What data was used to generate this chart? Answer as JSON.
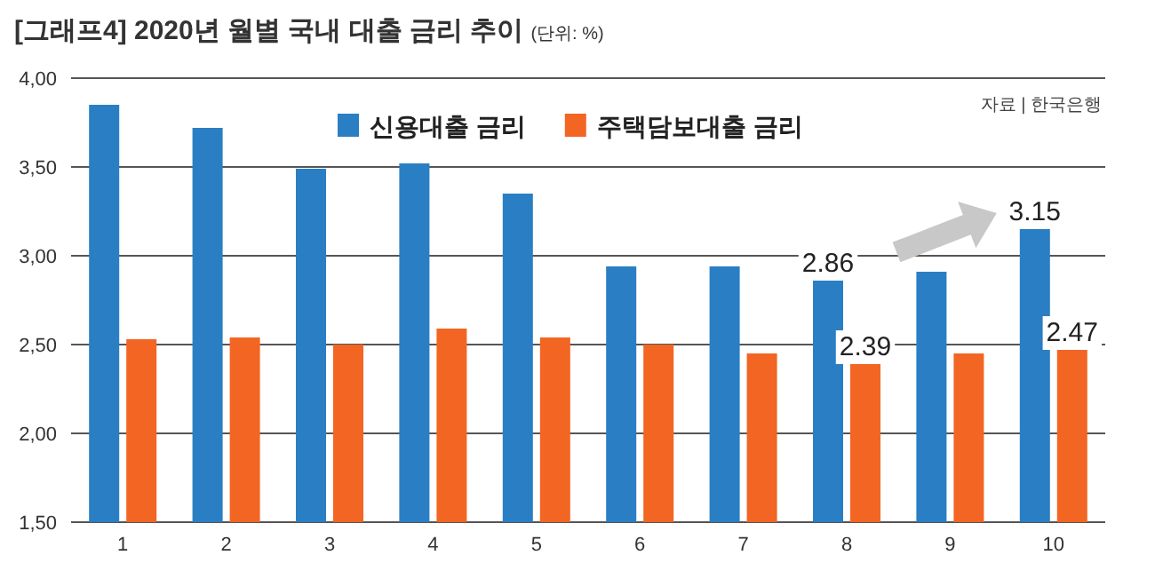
{
  "chart_data": {
    "type": "bar",
    "title": "[그래프4] 2020년 월별 국내 대출 금리 추이",
    "subtitle": "(단위: %)",
    "annotations": [
      "자료 | 한국은행"
    ],
    "categories": [
      "1",
      "2",
      "3",
      "4",
      "5",
      "6",
      "7",
      "8",
      "9",
      "10"
    ],
    "series": [
      {
        "name": "신용대출 금리",
        "color": "#2a7fc4",
        "values": [
          3.85,
          3.72,
          3.49,
          3.52,
          3.35,
          2.94,
          2.94,
          2.86,
          2.91,
          3.15
        ],
        "value_labels": [
          null,
          null,
          null,
          null,
          null,
          null,
          null,
          "2.86",
          null,
          "3.15"
        ]
      },
      {
        "name": "주택담보대출 금리",
        "color": "#f26522",
        "values": [
          2.53,
          2.54,
          2.5,
          2.59,
          2.54,
          2.5,
          2.45,
          2.39,
          2.45,
          2.47
        ],
        "value_labels": [
          null,
          null,
          null,
          null,
          null,
          null,
          null,
          "2.39",
          null,
          "2.47"
        ]
      }
    ],
    "ylim": [
      1.5,
      4.0
    ],
    "yticks": [
      {
        "value": 1.5,
        "label": "1,50"
      },
      {
        "value": 2.0,
        "label": "2,00"
      },
      {
        "value": 2.5,
        "label": "2,50"
      },
      {
        "value": 3.0,
        "label": "3,00"
      },
      {
        "value": 3.5,
        "label": "3,50"
      },
      {
        "value": 4.0,
        "label": "4,00"
      }
    ],
    "grid": "y",
    "legend": "top"
  }
}
